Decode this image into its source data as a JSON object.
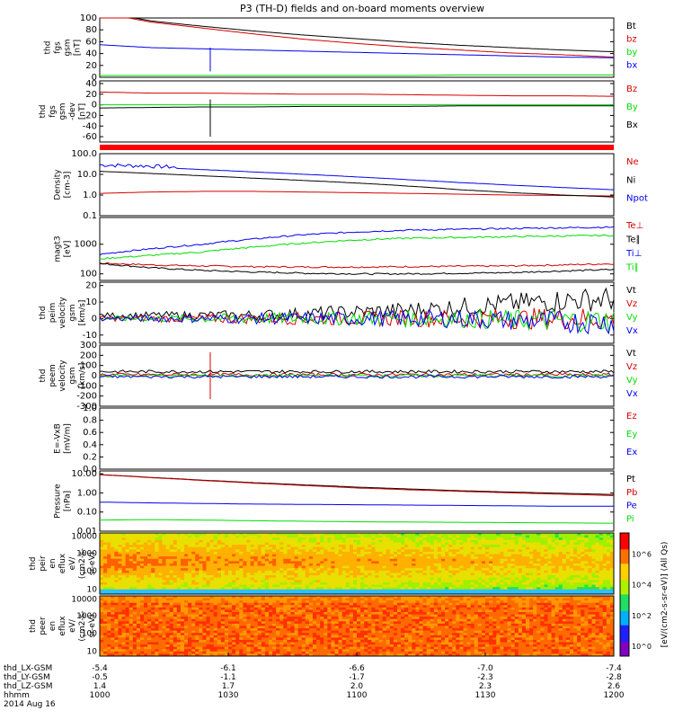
{
  "colors": {
    "black": "#000000",
    "red": "#d40000",
    "green": "#00dd00",
    "blue": "#0000ee"
  },
  "chart_data": {
    "type": "line",
    "title": "P3 (TH-D) fields and on-board moments overview",
    "panels": [
      {
        "id": "fgs",
        "ylabel": [
          "thd",
          "fgs",
          "gsm",
          "[nT]"
        ],
        "scale": "linear",
        "ylim": [
          0,
          100
        ],
        "ticks": [
          "0",
          "20",
          "40",
          "60",
          "80",
          "100"
        ],
        "series": [
          {
            "name": "Bt",
            "color": "black",
            "values": [
              110,
              95,
              86,
              78,
              71,
              65,
              59,
              54,
              50,
              46,
              43
            ]
          },
          {
            "name": "bz",
            "color": "red",
            "values": [
              109,
              93,
              83,
              73,
              64,
              57,
              51,
              46,
              41,
              38,
              34
            ]
          },
          {
            "name": "by",
            "color": "green",
            "values": [
              3,
              3,
              3,
              3,
              3,
              3,
              3,
              4,
              4,
              4,
              4
            ]
          },
          {
            "name": "bx",
            "color": "blue",
            "values": [
              55,
              50,
              48,
              46,
              44,
              42,
              40,
              38,
              36,
              34,
              33
            ]
          }
        ]
      },
      {
        "id": "fgs-dev",
        "ylabel": [
          "thd",
          "fgs",
          "gsm",
          "-dev",
          "[nT]"
        ],
        "scale": "linear",
        "ylim": [
          -70,
          45
        ],
        "ticks": [
          "-60",
          "-40",
          "-20",
          "0",
          "20",
          "40"
        ],
        "series": [
          {
            "name": "Bz",
            "color": "red",
            "values": [
              24,
              22,
              22,
              21,
              20,
              20,
              19,
              18,
              17,
              17,
              16
            ]
          },
          {
            "name": "By",
            "color": "green",
            "values": [
              0,
              0,
              0,
              0,
              0,
              0,
              0,
              0,
              0,
              0,
              0
            ]
          },
          {
            "name": "Bx",
            "color": "black",
            "values": [
              -6,
              -5,
              -4,
              -4,
              -3,
              -3,
              -3,
              -2,
              -2,
              -2,
              -2
            ]
          }
        ]
      },
      {
        "id": "density",
        "ylabel": [
          "Density",
          "[cm-3]"
        ],
        "scale": "log",
        "ylim": [
          0.1,
          100
        ],
        "ticks": [
          "0.1",
          "1.0",
          "10.0",
          "100.0"
        ],
        "series": [
          {
            "name": "Ne",
            "color": "red",
            "values": [
              1.2,
              1.4,
              1.5,
              1.5,
              1.4,
              1.3,
              1.2,
              1.1,
              1.0,
              0.95,
              0.9
            ]
          },
          {
            "name": "Ni",
            "color": "black",
            "values": [
              14,
              11,
              8.5,
              6.5,
              5,
              3.8,
              2.7,
              1.8,
              1.3,
              1.0,
              0.8
            ]
          },
          {
            "name": "Npot",
            "color": "blue",
            "values": [
              25,
              22,
              17,
              13,
              10,
              7.5,
              5.5,
              4,
              3,
              2.3,
              1.8
            ]
          }
        ]
      },
      {
        "id": "temperature",
        "ylabel": [
          "magt3",
          "[eV]"
        ],
        "scale": "log",
        "ylim": [
          60,
          8000
        ],
        "ticks": [
          "100",
          "1000"
        ],
        "series": [
          {
            "name": "Te⊥",
            "color": "red",
            "values": [
              230,
              200,
              185,
              175,
              170,
              170,
              175,
              180,
              185,
              200,
              220
            ]
          },
          {
            "name": "Te∥",
            "color": "black",
            "values": [
              220,
              160,
              130,
              115,
              105,
              100,
              100,
              105,
              110,
              125,
              140
            ]
          },
          {
            "name": "Ti⊥",
            "color": "blue",
            "values": [
              450,
              700,
              1000,
              1500,
              2100,
              2600,
              3000,
              3200,
              3400,
              3600,
              3800
            ]
          },
          {
            "name": "Ti∥",
            "color": "green",
            "values": [
              320,
              420,
              550,
              800,
              1100,
              1400,
              1600,
              1700,
              1800,
              1900,
              2000
            ]
          }
        ]
      },
      {
        "id": "peim",
        "ylabel": [
          "thd",
          "peim",
          "velocity",
          "gsm",
          "[km/s]"
        ],
        "scale": "linear",
        "ylim": [
          -15,
          22
        ],
        "ticks": [
          "-10",
          "0",
          "10",
          "20"
        ],
        "series": [
          {
            "name": "Vt",
            "color": "black",
            "values": [
              2,
              2,
              2,
              2,
              3,
              4,
              5,
              7,
              9,
              11,
              12
            ]
          },
          {
            "name": "Vz",
            "color": "red",
            "values": [
              0,
              0,
              0,
              0,
              0,
              0,
              0,
              0,
              0,
              0,
              0
            ]
          },
          {
            "name": "Vy",
            "color": "green",
            "values": [
              0,
              0,
              0,
              0,
              0,
              0,
              0,
              0,
              -1,
              -1,
              -1
            ]
          },
          {
            "name": "Vx",
            "color": "blue",
            "values": [
              0,
              0,
              0,
              0,
              0,
              0,
              0,
              0,
              -1,
              -2,
              -2
            ]
          }
        ]
      },
      {
        "id": "peem",
        "ylabel": [
          "thd",
          "peem",
          "velocity",
          "gsm",
          "[km/s]"
        ],
        "scale": "linear",
        "ylim": [
          -300,
          300
        ],
        "ticks": [
          "-300",
          "-200",
          "-100",
          "0",
          "100",
          "200",
          "300"
        ],
        "series": [
          {
            "name": "Vt",
            "color": "black",
            "values": [
              40,
              40,
              40,
              40,
              40,
              40,
              40,
              40,
              40,
              40,
              40
            ]
          },
          {
            "name": "Vz",
            "color": "red",
            "values": [
              10,
              10,
              10,
              10,
              10,
              10,
              10,
              10,
              10,
              10,
              10
            ]
          },
          {
            "name": "Vy",
            "color": "green",
            "values": [
              0,
              0,
              0,
              0,
              0,
              0,
              0,
              0,
              0,
              0,
              0
            ]
          },
          {
            "name": "Vx",
            "color": "blue",
            "values": [
              -10,
              -10,
              -10,
              -10,
              -10,
              -10,
              -10,
              -10,
              -10,
              -10,
              -10
            ]
          }
        ]
      },
      {
        "id": "efield",
        "ylabel": [
          "E=-VxB",
          "[mV/m]"
        ],
        "scale": "linear",
        "ylim": [
          0,
          1
        ],
        "ticks": [
          "0.0",
          "0.2",
          "0.4",
          "0.6",
          "0.8",
          "1.0"
        ],
        "series": [
          {
            "name": "Ez",
            "color": "red",
            "values": []
          },
          {
            "name": "Ey",
            "color": "green",
            "values": []
          },
          {
            "name": "Ex",
            "color": "blue",
            "values": []
          }
        ]
      },
      {
        "id": "pressure",
        "ylabel": [
          "Pressure",
          "[nPa]"
        ],
        "scale": "log",
        "ylim": [
          0.01,
          14
        ],
        "ticks": [
          "0.01",
          "0.10",
          "1.00",
          "10.00"
        ],
        "series": [
          {
            "name": "Pt",
            "color": "black",
            "values": [
              9,
              6.4,
              4.6,
              3.4,
              2.6,
              2.0,
              1.6,
              1.3,
              1.1,
              0.95,
              0.82
            ]
          },
          {
            "name": "Pb",
            "color": "red",
            "values": [
              8.8,
              6.2,
              4.4,
              3.2,
              2.4,
              1.8,
              1.45,
              1.2,
              1.0,
              0.85,
              0.72
            ]
          },
          {
            "name": "Pe",
            "color": "blue",
            "values": [
              0.33,
              0.3,
              0.28,
              0.26,
              0.25,
              0.24,
              0.23,
              0.22,
              0.21,
              0.2,
              0.2
            ]
          },
          {
            "name": "Pi",
            "color": "green",
            "values": [
              0.038,
              0.04,
              0.038,
              0.035,
              0.033,
              0.031,
              0.03,
              0.029,
              0.028,
              0.027,
              0.026
            ]
          }
        ]
      },
      {
        "id": "peir",
        "ylabel": [
          "thd",
          "peir",
          "en",
          "eflux",
          "eV/",
          "(cm2-s-",
          "sr-eV)"
        ],
        "scale": "log",
        "type": "heatmap",
        "ticks": [
          "10",
          "100",
          "1000",
          "10000"
        ]
      },
      {
        "id": "peer",
        "ylabel": [
          "thd",
          "peer",
          "en",
          "eflux",
          "eV/",
          "(cm2-s-",
          "sr-eV)"
        ],
        "scale": "log",
        "type": "heatmap",
        "ticks": [
          "10",
          "100",
          "1000",
          "10000"
        ]
      }
    ],
    "colorbar": {
      "label": "[eV/(cm2-s-sr-eV)] (All Qs)",
      "ticks": [
        "10^0",
        "10^2",
        "10^4",
        "10^6"
      ]
    },
    "x_axis": {
      "rows": [
        {
          "label": "thd_LX-GSM",
          "values": [
            "-5.4",
            "-6.1",
            "-6.6",
            "-7.0",
            "-7.4"
          ]
        },
        {
          "label": "thd_LY-GSM",
          "values": [
            "-0.5",
            "-1.1",
            "-1.7",
            "-2.3",
            "-2.8"
          ]
        },
        {
          "label": "thd_LZ-GSM",
          "values": [
            "1.4",
            "1.7",
            "2.0",
            "2.3",
            "2.6"
          ]
        },
        {
          "label": "hhmm",
          "values": [
            "1000",
            "1030",
            "1100",
            "1130",
            "1200"
          ]
        }
      ],
      "date": "2014 Aug 16"
    }
  }
}
